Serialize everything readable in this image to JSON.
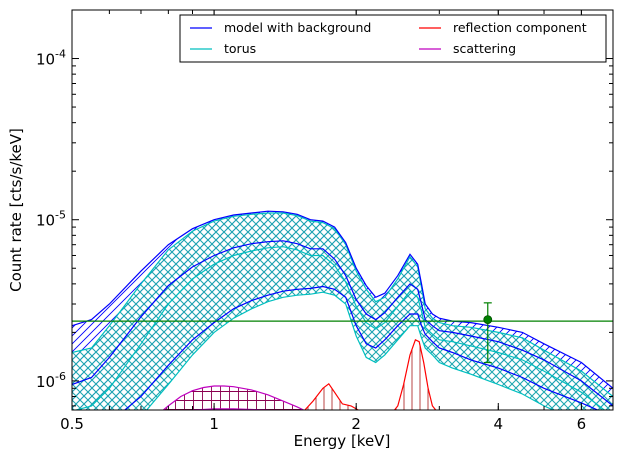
{
  "chart_data": {
    "type": "line",
    "xlabel": "Energy [keV]",
    "ylabel": "Count rate [cts/s/keV]",
    "xscale": "log",
    "yscale": "log",
    "xlim": [
      0.5,
      7.0
    ],
    "ylim": [
      6.6e-07,
      0.0002
    ],
    "x_ticks": [
      {
        "value": 0.5,
        "label": "0.5"
      },
      {
        "value": 1,
        "label": "1"
      },
      {
        "value": 2,
        "label": "2"
      },
      {
        "value": 4,
        "label": "4"
      },
      {
        "value": 6,
        "label": "6"
      }
    ],
    "y_ticks": [
      {
        "value": 1e-06,
        "base": "10",
        "exp": "-6"
      },
      {
        "value": 1e-05,
        "base": "10",
        "exp": "-5"
      },
      {
        "value": 0.0001,
        "base": "10",
        "exp": "-4"
      }
    ],
    "legend": {
      "placement": "top-right",
      "columns": 2,
      "entries": [
        {
          "label": "model with background",
          "color": "#0000ff"
        },
        {
          "label": "reflection component",
          "color": "#ff0000"
        },
        {
          "label": "torus",
          "color": "#00bfbf"
        },
        {
          "label": "scattering",
          "color": "#bf00bf"
        }
      ]
    },
    "series": [
      {
        "name": "model with background",
        "color": "#0000ff",
        "x": [
          0.5,
          0.55,
          0.6,
          0.7,
          0.8,
          0.9,
          1.0,
          1.1,
          1.2,
          1.3,
          1.4,
          1.5,
          1.6,
          1.7,
          1.8,
          1.9,
          2.0,
          2.1,
          2.2,
          2.3,
          2.45,
          2.6,
          2.7,
          2.75,
          2.8,
          2.9,
          3.0,
          3.2,
          3.5,
          4.0,
          4.5,
          5.0,
          6.0,
          7.0
        ],
        "upper": [
          2.2e-06,
          2.4e-06,
          3e-06,
          4.8e-06,
          7e-06,
          8.8e-06,
          1e-05,
          1.07e-05,
          1.1e-05,
          1.13e-05,
          1.12e-05,
          1.08e-05,
          1e-05,
          9.8e-06,
          9e-06,
          7.2e-06,
          5e-06,
          3.9e-06,
          3.3e-06,
          3.5e-06,
          4.5e-06,
          6.1e-06,
          5.3e-06,
          4e-06,
          3e-06,
          2.6e-06,
          2.45e-06,
          2.35e-06,
          2.3e-06,
          2.15e-06,
          2e-06,
          1.7e-06,
          1.3e-06,
          9e-07
        ],
        "mid": [
          9.5e-07,
          1.05e-06,
          1.4e-06,
          2.5e-06,
          3.9e-06,
          5.1e-06,
          6e-06,
          6.7e-06,
          7.1e-06,
          7.3e-06,
          7.4e-06,
          7.1e-06,
          6.6e-06,
          6.6e-06,
          5.7e-06,
          4.5e-06,
          3.2e-06,
          2.6e-06,
          2.4e-06,
          2.65e-06,
          3.3e-06,
          4e-06,
          3.7e-06,
          3e-06,
          2.4e-06,
          2.2e-06,
          2.05e-06,
          2e-06,
          1.9e-06,
          1.75e-06,
          1.55e-06,
          1.35e-06,
          1e-06,
          7e-07
        ],
        "lower": [
          4e-07,
          4.6e-07,
          5.5e-07,
          8e-07,
          1.25e-06,
          1.8e-06,
          2.3e-06,
          2.8e-06,
          3.15e-06,
          3.4e-06,
          3.6e-06,
          3.7e-06,
          3.75e-06,
          3.85e-06,
          3.7e-06,
          3.3e-06,
          2.2e-06,
          1.7e-06,
          1.6e-06,
          1.8e-06,
          2.2e-06,
          2.6e-06,
          2.6e-06,
          2.2e-06,
          1.95e-06,
          1.75e-06,
          1.6e-06,
          1.5e-06,
          1.35e-06,
          1.2e-06,
          1.05e-06,
          9e-07,
          7.3e-07,
          6e-07
        ]
      },
      {
        "name": "torus",
        "color": "#00bfbf",
        "x": [
          0.5,
          0.55,
          0.6,
          0.7,
          0.8,
          0.9,
          1.0,
          1.1,
          1.2,
          1.3,
          1.4,
          1.5,
          1.6,
          1.7,
          1.8,
          1.9,
          2.0,
          2.1,
          2.2,
          2.3,
          2.45,
          2.6,
          2.7,
          2.75,
          2.8,
          2.9,
          3.0,
          3.2,
          3.5,
          4.0,
          4.5,
          5.0,
          6.0,
          7.0
        ],
        "upper": [
          1.5e-06,
          1.6e-06,
          2.2e-06,
          4e-06,
          6.5e-06,
          8.5e-06,
          9.8e-06,
          1.05e-05,
          1.08e-05,
          1.1e-05,
          1.1e-05,
          1.06e-05,
          9.8e-06,
          9.6e-06,
          8.8e-06,
          7e-06,
          4.8e-06,
          3.7e-06,
          3.1e-06,
          3.3e-06,
          4.3e-06,
          5.9e-06,
          5.1e-06,
          3.8e-06,
          2.8e-06,
          2.45e-06,
          2.3e-06,
          2.2e-06,
          2.15e-06,
          2e-06,
          1.85e-06,
          1.55e-06,
          1.15e-06,
          8e-07
        ],
        "mid": [
          6.5e-07,
          7e-07,
          9e-07,
          1.7e-06,
          3e-06,
          4.3e-06,
          5.3e-06,
          6e-06,
          6.4e-06,
          6.7e-06,
          6.8e-06,
          6.5e-06,
          6e-06,
          6e-06,
          5.2e-06,
          4.1e-06,
          2.9e-06,
          2.3e-06,
          2.1e-06,
          2.3e-06,
          2.9e-06,
          3.6e-06,
          3.3e-06,
          2.7e-06,
          2.15e-06,
          1.95e-06,
          1.8e-06,
          1.75e-06,
          1.65e-06,
          1.5e-06,
          1.35e-06,
          1.15e-06,
          8.5e-07,
          6e-07
        ],
        "lower": [
          3e-07,
          3.4e-07,
          4e-07,
          6e-07,
          9.5e-07,
          1.45e-06,
          2e-06,
          2.45e-06,
          2.8e-06,
          3.1e-06,
          3.3e-06,
          3.4e-06,
          3.45e-06,
          3.55e-06,
          3.4e-06,
          3e-06,
          1.9e-06,
          1.4e-06,
          1.3e-06,
          1.45e-06,
          1.8e-06,
          2.2e-06,
          2.2e-06,
          1.85e-06,
          1.6e-06,
          1.45e-06,
          1.3e-06,
          1.2e-06,
          1.1e-06,
          9.5e-07,
          8.3e-07,
          7e-07,
          5.5e-07,
          4.5e-07
        ]
      },
      {
        "name": "reflection component",
        "color": "#ff0000",
        "x": [
          1.45,
          1.55,
          1.62,
          1.7,
          1.75,
          1.8,
          1.87,
          1.95,
          2.02,
          2.1,
          2.35,
          2.45,
          2.52,
          2.6,
          2.67,
          2.72,
          2.78,
          2.84,
          2.9,
          3.0,
          3.2
        ],
        "values": [
          6e-07,
          6.5e-07,
          7.5e-07,
          9e-07,
          9.6e-07,
          8.5e-07,
          7.2e-07,
          7e-07,
          6.6e-07,
          6e-07,
          6e-07,
          7e-07,
          9.5e-07,
          1.45e-06,
          1.8e-06,
          1.75e-06,
          1.3e-06,
          9e-07,
          7e-07,
          6.2e-07,
          5.5e-07
        ]
      },
      {
        "name": "scattering",
        "color": "#bf00bf",
        "x": [
          0.75,
          0.8,
          0.85,
          0.9,
          0.95,
          1.0,
          1.05,
          1.1,
          1.2,
          1.3,
          1.4,
          1.5,
          1.6,
          1.7
        ],
        "upper": [
          6e-07,
          7e-07,
          8e-07,
          8.7e-07,
          9.1e-07,
          9.3e-07,
          9.3e-07,
          9.2e-07,
          8.8e-07,
          8.2e-07,
          7.5e-07,
          6.9e-07,
          6.3e-07,
          5.8e-07
        ],
        "lower": [
          6e-07,
          6.3e-07,
          6.5e-07,
          6.6e-07,
          6.65e-07,
          6.7e-07,
          6.7e-07,
          6.7e-07,
          6.65e-07,
          6.6e-07,
          6.5e-07,
          6.3e-07,
          6.1e-07,
          5.8e-07
        ]
      }
    ],
    "background_level": {
      "value": 2.35e-06,
      "color": "#008000"
    },
    "data_point": {
      "x": 3.8,
      "y": 2.4e-06,
      "y_low": 1.3e-06,
      "y_high": 3.05e-06,
      "color": "#008000"
    }
  }
}
